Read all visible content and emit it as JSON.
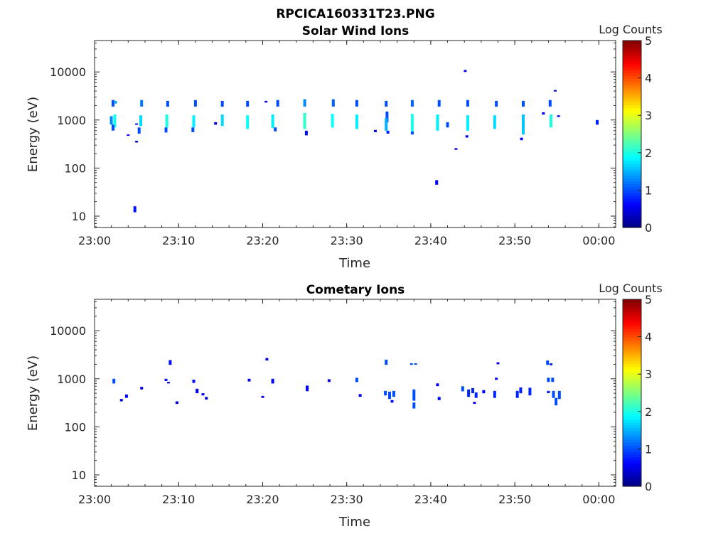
{
  "figure": {
    "title": "RPCICA160331T23.PNG"
  },
  "colormap": [
    "#00007f",
    "#0000ff",
    "#007fff",
    "#00ffff",
    "#7fff7f",
    "#ffff00",
    "#ff7f00",
    "#ff0000",
    "#7f0000"
  ],
  "chart_data": [
    {
      "type": "heatmap",
      "title": "Solar Wind Ions",
      "xlabel": "Time",
      "ylabel": "Energy (eV)",
      "x_scale": "time",
      "y_scale": "log",
      "xlim": [
        "23:00",
        "00:02"
      ],
      "ylim": [
        5.8,
        45000
      ],
      "x_ticks": [
        "23:00",
        "23:10",
        "23:20",
        "23:30",
        "23:40",
        "23:50",
        "00:00"
      ],
      "y_ticks": [
        {
          "value": 10,
          "label": "10"
        },
        {
          "value": 100,
          "label": "100"
        },
        {
          "value": 1000,
          "label": "1000"
        },
        {
          "value": 10000,
          "label": "10000"
        }
      ],
      "colorbar": {
        "label": "Log Counts",
        "min": 0,
        "max": 5,
        "ticks": [
          "0",
          "1",
          "2",
          "3",
          "4",
          "5"
        ]
      },
      "cells": [
        {
          "t": "23:02.2",
          "e1": 1900,
          "e2": 2600,
          "v": 1.0
        },
        {
          "t": "23:02.5",
          "e1": 2200,
          "e2": 2500,
          "v": 1.5
        },
        {
          "t": "23:02.0",
          "e1": 800,
          "e2": 1200,
          "v": 1.3
        },
        {
          "t": "23:02.4",
          "e1": 700,
          "e2": 1300,
          "v": 1.9
        },
        {
          "t": "23:02.2",
          "e1": 600,
          "e2": 800,
          "v": 1.0
        },
        {
          "t": "23:04.0",
          "e1": 470,
          "e2": 500,
          "v": 0.5
        },
        {
          "t": "23:05.0",
          "e1": 340,
          "e2": 370,
          "v": 0.5
        },
        {
          "t": "23:04.8",
          "e1": 12,
          "e2": 16,
          "v": 0.7
        },
        {
          "t": "23:05.6",
          "e1": 1900,
          "e2": 2600,
          "v": 1.2
        },
        {
          "t": "23:05.5",
          "e1": 750,
          "e2": 1250,
          "v": 1.7
        },
        {
          "t": "23:05.3",
          "e1": 520,
          "e2": 700,
          "v": 1.0
        },
        {
          "t": "23:05.0",
          "e1": 800,
          "e2": 850,
          "v": 0.7
        },
        {
          "t": "23:08.7",
          "e1": 1900,
          "e2": 2500,
          "v": 1.0
        },
        {
          "t": "23:08.6",
          "e1": 700,
          "e2": 1300,
          "v": 2.0
        },
        {
          "t": "23:08.5",
          "e1": 550,
          "e2": 700,
          "v": 1.0
        },
        {
          "t": "23:12.0",
          "e1": 1900,
          "e2": 2600,
          "v": 1.0
        },
        {
          "t": "23:11.8",
          "e1": 700,
          "e2": 1250,
          "v": 1.8
        },
        {
          "t": "23:11.7",
          "e1": 560,
          "e2": 700,
          "v": 1.0
        },
        {
          "t": "23:15.2",
          "e1": 1900,
          "e2": 2500,
          "v": 1.0
        },
        {
          "t": "23:15.2",
          "e1": 750,
          "e2": 1300,
          "v": 1.7
        },
        {
          "t": "23:14.4",
          "e1": 800,
          "e2": 900,
          "v": 0.6
        },
        {
          "t": "23:18.2",
          "e1": 1900,
          "e2": 2500,
          "v": 1.0
        },
        {
          "t": "23:18.2",
          "e1": 650,
          "e2": 1250,
          "v": 1.9
        },
        {
          "t": "23:20.4",
          "e1": 2300,
          "e2": 2500,
          "v": 0.6
        },
        {
          "t": "23:21.8",
          "e1": 1900,
          "e2": 2600,
          "v": 1.0
        },
        {
          "t": "23:21.2",
          "e1": 680,
          "e2": 1300,
          "v": 1.8
        },
        {
          "t": "23:21.5",
          "e1": 580,
          "e2": 700,
          "v": 1.0
        },
        {
          "t": "23:25.0",
          "e1": 1900,
          "e2": 2700,
          "v": 1.3
        },
        {
          "t": "23:25.0",
          "e1": 650,
          "e2": 1400,
          "v": 2.1
        },
        {
          "t": "23:25.2",
          "e1": 480,
          "e2": 600,
          "v": 0.7
        },
        {
          "t": "23:28.4",
          "e1": 1900,
          "e2": 2700,
          "v": 1.1
        },
        {
          "t": "23:28.3",
          "e1": 700,
          "e2": 1350,
          "v": 1.9
        },
        {
          "t": "23:31.2",
          "e1": 1900,
          "e2": 2600,
          "v": 1.0
        },
        {
          "t": "23:31.2",
          "e1": 650,
          "e2": 1300,
          "v": 1.8
        },
        {
          "t": "23:33.4",
          "e1": 560,
          "e2": 620,
          "v": 0.6
        },
        {
          "t": "23:34.7",
          "e1": 1900,
          "e2": 2500,
          "v": 1.0
        },
        {
          "t": "23:34.8",
          "e1": 900,
          "e2": 1500,
          "v": 1.0
        },
        {
          "t": "23:34.7",
          "e1": 600,
          "e2": 1100,
          "v": 1.5
        },
        {
          "t": "23:34.9",
          "e1": 520,
          "e2": 600,
          "v": 0.8
        },
        {
          "t": "23:37.8",
          "e1": 1900,
          "e2": 2600,
          "v": 1.1
        },
        {
          "t": "23:37.8",
          "e1": 580,
          "e2": 1350,
          "v": 2.0
        },
        {
          "t": "23:37.8",
          "e1": 500,
          "e2": 580,
          "v": 1.0
        },
        {
          "t": "23:41.0",
          "e1": 1900,
          "e2": 2600,
          "v": 1.0
        },
        {
          "t": "23:40.8",
          "e1": 600,
          "e2": 1300,
          "v": 1.8
        },
        {
          "t": "23:42.0",
          "e1": 700,
          "e2": 900,
          "v": 1.0
        },
        {
          "t": "23:40.7",
          "e1": 45,
          "e2": 56,
          "v": 0.6
        },
        {
          "t": "23:43.0",
          "e1": 240,
          "e2": 260,
          "v": 0.5
        },
        {
          "t": "23:44.1",
          "e1": 10000,
          "e2": 11000,
          "v": 0.6
        },
        {
          "t": "23:44.4",
          "e1": 1900,
          "e2": 2600,
          "v": 1.0
        },
        {
          "t": "23:44.4",
          "e1": 600,
          "e2": 1250,
          "v": 1.8
        },
        {
          "t": "23:44.3",
          "e1": 430,
          "e2": 480,
          "v": 0.6
        },
        {
          "t": "23:47.8",
          "e1": 1900,
          "e2": 2500,
          "v": 1.0
        },
        {
          "t": "23:47.6",
          "e1": 650,
          "e2": 1250,
          "v": 1.7
        },
        {
          "t": "23:51.0",
          "e1": 1900,
          "e2": 2500,
          "v": 1.0
        },
        {
          "t": "23:51.0",
          "e1": 500,
          "e2": 1300,
          "v": 1.6
        },
        {
          "t": "23:50.8",
          "e1": 380,
          "e2": 430,
          "v": 0.6
        },
        {
          "t": "23:54.2",
          "e1": 1900,
          "e2": 2600,
          "v": 1.0
        },
        {
          "t": "23:54.3",
          "e1": 700,
          "e2": 1300,
          "v": 2.0
        },
        {
          "t": "23:53.4",
          "e1": 1300,
          "e2": 1450,
          "v": 0.6
        },
        {
          "t": "23:54.8",
          "e1": 3900,
          "e2": 4200,
          "v": 0.6
        },
        {
          "t": "23:55.2",
          "e1": 1150,
          "e2": 1250,
          "v": 0.6
        },
        {
          "t": "23:59.8",
          "e1": 800,
          "e2": 1000,
          "v": 0.8
        }
      ]
    },
    {
      "type": "heatmap",
      "title": "Cometary Ions",
      "xlabel": "Time",
      "ylabel": "Energy (eV)",
      "x_scale": "time",
      "y_scale": "log",
      "xlim": [
        "23:00",
        "00:02"
      ],
      "ylim": [
        5.8,
        45000
      ],
      "x_ticks": [
        "23:00",
        "23:10",
        "23:20",
        "23:30",
        "23:40",
        "23:50",
        "00:00"
      ],
      "y_ticks": [
        {
          "value": 10,
          "label": "10"
        },
        {
          "value": 100,
          "label": "100"
        },
        {
          "value": 1000,
          "label": "1000"
        },
        {
          "value": 10000,
          "label": "10000"
        }
      ],
      "colorbar": {
        "label": "Log Counts",
        "min": 0,
        "max": 5,
        "ticks": [
          "0",
          "1",
          "2",
          "3",
          "4",
          "5"
        ]
      },
      "cells": [
        {
          "t": "23:02.3",
          "e1": 800,
          "e2": 1000,
          "v": 1.0
        },
        {
          "t": "23:03.2",
          "e1": 340,
          "e2": 380,
          "v": 0.6
        },
        {
          "t": "23:03.8",
          "e1": 400,
          "e2": 470,
          "v": 0.6
        },
        {
          "t": "23:05.6",
          "e1": 600,
          "e2": 680,
          "v": 0.6
        },
        {
          "t": "23:08.5",
          "e1": 900,
          "e2": 1000,
          "v": 0.6
        },
        {
          "t": "23:09.0",
          "e1": 1950,
          "e2": 2450,
          "v": 0.7
        },
        {
          "t": "23:08.8",
          "e1": 800,
          "e2": 860,
          "v": 0.5
        },
        {
          "t": "23:09.8",
          "e1": 300,
          "e2": 340,
          "v": 0.5
        },
        {
          "t": "23:11.8",
          "e1": 820,
          "e2": 960,
          "v": 0.7
        },
        {
          "t": "23:12.2",
          "e1": 500,
          "e2": 620,
          "v": 0.6
        },
        {
          "t": "23:12.9",
          "e1": 450,
          "e2": 500,
          "v": 0.5
        },
        {
          "t": "23:13.3",
          "e1": 370,
          "e2": 420,
          "v": 0.5
        },
        {
          "t": "23:18.4",
          "e1": 880,
          "e2": 1000,
          "v": 0.6
        },
        {
          "t": "23:20.0",
          "e1": 400,
          "e2": 440,
          "v": 0.5
        },
        {
          "t": "23:20.5",
          "e1": 2400,
          "e2": 2700,
          "v": 0.5
        },
        {
          "t": "23:21.2",
          "e1": 800,
          "e2": 1000,
          "v": 0.6
        },
        {
          "t": "23:25.3",
          "e1": 550,
          "e2": 720,
          "v": 0.6
        },
        {
          "t": "23:27.9",
          "e1": 860,
          "e2": 980,
          "v": 0.6
        },
        {
          "t": "23:31.2",
          "e1": 850,
          "e2": 1050,
          "v": 1.0
        },
        {
          "t": "23:31.6",
          "e1": 420,
          "e2": 480,
          "v": 0.6
        },
        {
          "t": "23:34.7",
          "e1": 1950,
          "e2": 2500,
          "v": 1.0
        },
        {
          "t": "23:34.6",
          "e1": 450,
          "e2": 560,
          "v": 1.0
        },
        {
          "t": "23:35.1",
          "e1": 380,
          "e2": 540,
          "v": 1.0
        },
        {
          "t": "23:35.6",
          "e1": 420,
          "e2": 560,
          "v": 1.0
        },
        {
          "t": "23:35.4",
          "e1": 320,
          "e2": 360,
          "v": 0.6
        },
        {
          "t": "23:37.7",
          "e1": 1950,
          "e2": 2100,
          "v": 1.0
        },
        {
          "t": "23:38.2",
          "e1": 1950,
          "e2": 2100,
          "v": 1.0
        },
        {
          "t": "23:38.0",
          "e1": 240,
          "e2": 320,
          "v": 1.0
        },
        {
          "t": "23:38.0",
          "e1": 350,
          "e2": 600,
          "v": 1.0
        },
        {
          "t": "23:40.8",
          "e1": 700,
          "e2": 800,
          "v": 0.6
        },
        {
          "t": "23:41.0",
          "e1": 360,
          "e2": 420,
          "v": 0.6
        },
        {
          "t": "23:43.8",
          "e1": 550,
          "e2": 700,
          "v": 1.0
        },
        {
          "t": "23:44.5",
          "e1": 420,
          "e2": 600,
          "v": 0.8
        },
        {
          "t": "23:45.0",
          "e1": 500,
          "e2": 640,
          "v": 0.8
        },
        {
          "t": "23:45.4",
          "e1": 400,
          "e2": 520,
          "v": 0.8
        },
        {
          "t": "23:45.2",
          "e1": 300,
          "e2": 330,
          "v": 0.5
        },
        {
          "t": "23:46.3",
          "e1": 500,
          "e2": 580,
          "v": 0.6
        },
        {
          "t": "23:47.6",
          "e1": 400,
          "e2": 560,
          "v": 0.8
        },
        {
          "t": "23:48.0",
          "e1": 2000,
          "e2": 2200,
          "v": 0.6
        },
        {
          "t": "23:47.8",
          "e1": 950,
          "e2": 1050,
          "v": 0.6
        },
        {
          "t": "23:50.3",
          "e1": 400,
          "e2": 560,
          "v": 0.8
        },
        {
          "t": "23:50.7",
          "e1": 500,
          "e2": 660,
          "v": 0.8
        },
        {
          "t": "23:51.8",
          "e1": 450,
          "e2": 650,
          "v": 0.8
        },
        {
          "t": "23:53.9",
          "e1": 1950,
          "e2": 2400,
          "v": 1.0
        },
        {
          "t": "23:54.3",
          "e1": 1900,
          "e2": 2100,
          "v": 0.8
        },
        {
          "t": "23:54.0",
          "e1": 860,
          "e2": 1050,
          "v": 1.0
        },
        {
          "t": "23:54.5",
          "e1": 860,
          "e2": 1050,
          "v": 1.0
        },
        {
          "t": "23:54.0",
          "e1": 500,
          "e2": 560,
          "v": 0.8
        },
        {
          "t": "23:54.6",
          "e1": 400,
          "e2": 560,
          "v": 1.0
        },
        {
          "t": "23:54.9",
          "e1": 280,
          "e2": 400,
          "v": 1.0
        },
        {
          "t": "23:55.3",
          "e1": 380,
          "e2": 560,
          "v": 1.0
        }
      ]
    }
  ]
}
